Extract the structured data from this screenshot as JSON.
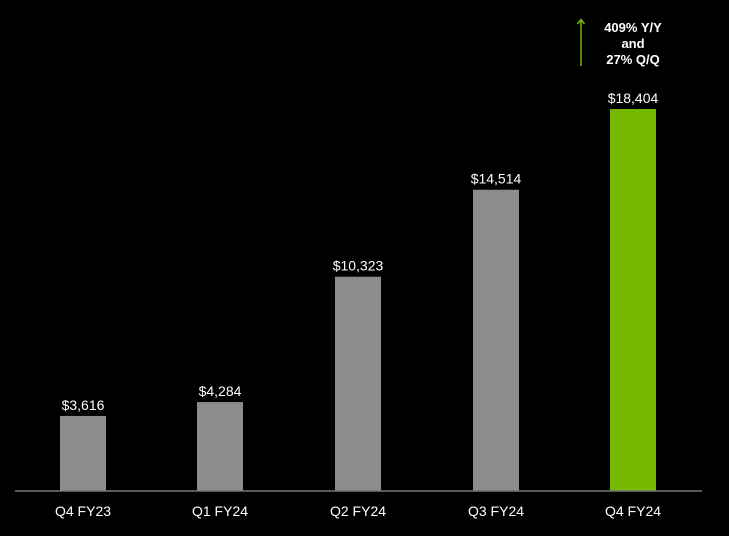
{
  "chart_data": {
    "type": "bar",
    "categories": [
      "Q4 FY23",
      "Q1 FY24",
      "Q2 FY24",
      "Q3 FY24",
      "Q4 FY24"
    ],
    "values": [
      3616,
      4284,
      10323,
      14514,
      18404
    ],
    "value_labels": [
      "$3,616",
      "$4,284",
      "$10,323",
      "$14,514",
      "$18,404"
    ],
    "highlight_index": 4,
    "colors": {
      "bar": "#8c8c8c",
      "highlight": "#76b900",
      "axis": "#777777",
      "text": "#ffffff",
      "background": "#000000"
    },
    "ylim": [
      0,
      18404
    ],
    "grid": false,
    "annotation": {
      "lines": [
        "409% Y/Y",
        "and",
        "27% Q/Q"
      ],
      "arrow_color": "#76b900"
    }
  }
}
